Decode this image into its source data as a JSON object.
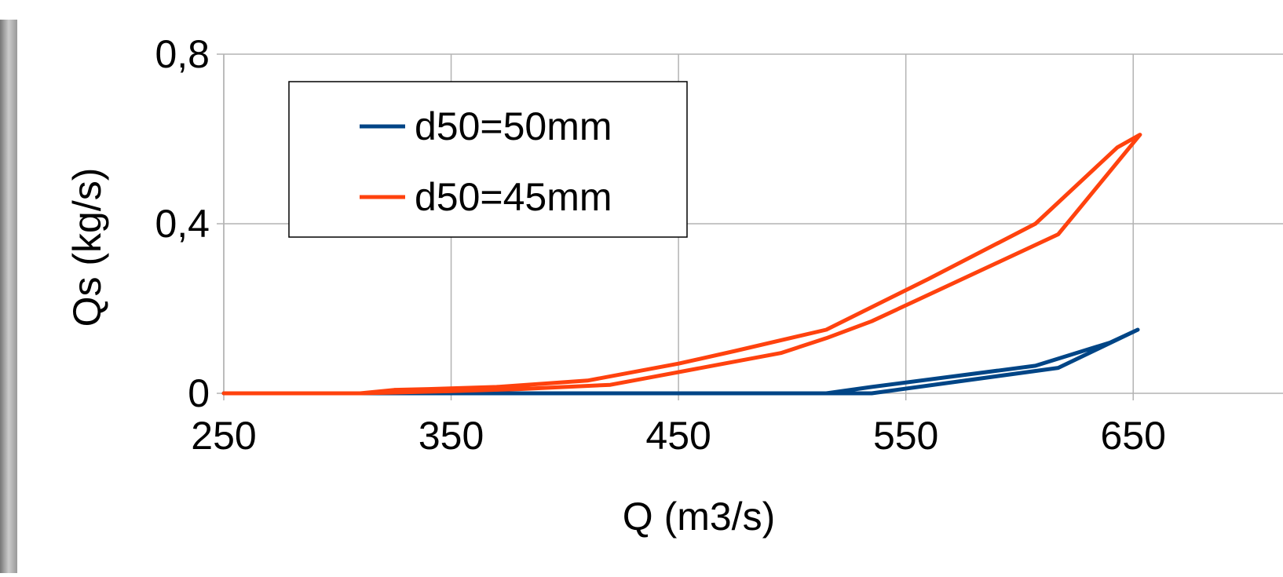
{
  "chart_data": {
    "type": "line",
    "x_label": "Q (m3/s)",
    "y_label": "Qs (kg/s)",
    "xlim": [
      250,
      700
    ],
    "xticks": [
      250,
      350,
      450,
      550,
      650
    ],
    "ylim": [
      0,
      0.8
    ],
    "yticks": [
      0,
      {
        "value": 0.4,
        "label": "0,4"
      },
      {
        "value": 0.8,
        "label": "0,8"
      }
    ],
    "grid": true,
    "legend": "upper left",
    "series": [
      {
        "name": "d50=50mm",
        "color": "#004586",
        "x": [
          250,
          290,
          350,
          420,
          515,
          535,
          607,
          640,
          652,
          617,
          535,
          515,
          430,
          290
        ],
        "values": [
          0,
          0,
          0,
          0,
          0,
          0.015,
          0.065,
          0.12,
          0.15,
          0.06,
          0,
          0,
          0,
          0
        ]
      },
      {
        "name": "d50=45mm",
        "color": "#ff420e",
        "x": [
          250,
          310,
          325,
          340,
          370,
          410,
          450,
          475,
          515,
          560,
          607,
          643,
          653,
          617,
          535,
          515,
          495,
          470,
          440,
          420,
          380,
          350,
          310
        ],
        "values": [
          0,
          0,
          0.008,
          0.01,
          0.015,
          0.03,
          0.07,
          0.1,
          0.15,
          0.27,
          0.4,
          0.58,
          0.61,
          0.375,
          0.17,
          0.13,
          0.095,
          0.07,
          0.04,
          0.02,
          0.01,
          0.005,
          0
        ]
      }
    ]
  }
}
